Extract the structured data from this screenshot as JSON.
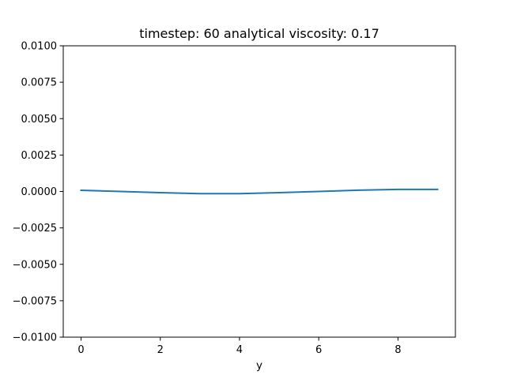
{
  "chart_data": {
    "type": "line",
    "title": "timestep: 60 analytical viscosity: 0.17",
    "xlabel": "y",
    "ylabel": "",
    "xlim": [
      -0.45,
      9.45
    ],
    "ylim": [
      -0.01,
      0.01
    ],
    "grid": false,
    "x_ticks": [
      "0",
      "2",
      "4",
      "6",
      "8"
    ],
    "y_ticks": [
      "0.0100",
      "0.0075",
      "0.0050",
      "0.0025",
      "0.0000",
      "−0.0025",
      "−0.0050",
      "−0.0075",
      "−0.0100"
    ],
    "x": [
      0,
      1,
      2,
      3,
      4,
      5,
      6,
      7,
      8,
      9
    ],
    "series": [
      {
        "color": "#1f77b4",
        "values": [
          8e-05,
          0.0,
          -8e-05,
          -0.00015,
          -0.00015,
          -8e-05,
          0.0,
          9e-05,
          0.00014,
          0.00014
        ]
      }
    ]
  }
}
